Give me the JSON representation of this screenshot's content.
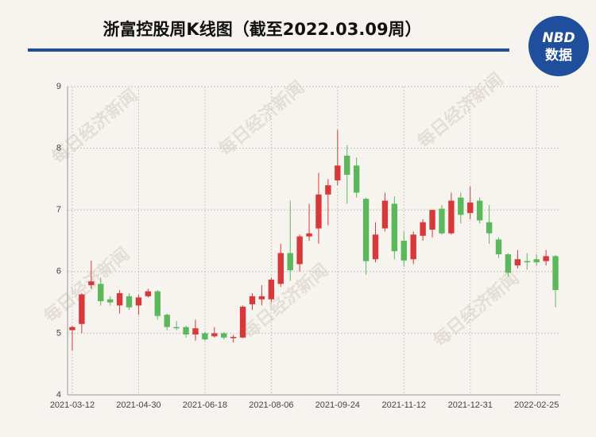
{
  "chart_data": {
    "type": "candlestick",
    "title": "浙富控股周K线图（截至2022.03.09周）",
    "logo_text": "NBD",
    "logo_subtext": "数据",
    "watermark": "每日经济新闻",
    "categories": [
      "2021-03-12",
      null,
      null,
      null,
      null,
      null,
      null,
      "2021-04-30",
      null,
      null,
      null,
      null,
      null,
      null,
      "2021-06-18",
      null,
      null,
      null,
      null,
      null,
      null,
      "2021-08-06",
      null,
      null,
      null,
      null,
      null,
      null,
      "2021-09-24",
      null,
      null,
      null,
      null,
      null,
      null,
      "2021-11-12",
      null,
      null,
      null,
      null,
      null,
      null,
      "2021-12-31",
      null,
      null,
      null,
      null,
      null,
      null,
      "2022-02-25",
      null,
      null
    ],
    "open": [
      5.05,
      5.15,
      5.78,
      5.8,
      5.55,
      5.45,
      5.6,
      5.45,
      5.6,
      5.68,
      5.3,
      5.1,
      5.1,
      4.98,
      5.0,
      4.95,
      5.0,
      4.92,
      4.93,
      5.47,
      5.55,
      5.55,
      5.8,
      6.3,
      6.12,
      6.57,
      6.7,
      7.25,
      7.48,
      7.88,
      7.72,
      7.18,
      6.2,
      6.7,
      7.1,
      6.5,
      6.2,
      6.58,
      6.68,
      7.02,
      6.62,
      7.2,
      6.95,
      7.15,
      6.8,
      6.52,
      6.28,
      6.1,
      6.17,
      6.2,
      6.17,
      6.25
    ],
    "high": [
      5.12,
      5.65,
      6.18,
      5.9,
      5.6,
      5.7,
      5.65,
      5.62,
      5.72,
      5.7,
      5.32,
      5.2,
      5.12,
      5.22,
      5.02,
      5.1,
      5.02,
      4.97,
      5.45,
      5.65,
      5.78,
      5.9,
      6.45,
      7.15,
      6.6,
      7.1,
      7.6,
      7.5,
      8.3,
      8.05,
      7.85,
      7.2,
      6.8,
      7.28,
      7.22,
      6.65,
      6.65,
      6.85,
      7.0,
      7.08,
      7.28,
      7.28,
      7.38,
      7.2,
      7.08,
      6.55,
      6.3,
      6.35,
      6.3,
      6.28,
      6.35,
      6.27
    ],
    "low": [
      4.72,
      5.0,
      5.72,
      5.45,
      5.45,
      5.32,
      5.38,
      5.3,
      5.58,
      5.22,
      5.05,
      5.05,
      4.93,
      4.88,
      4.88,
      4.93,
      4.9,
      4.85,
      4.92,
      5.38,
      5.45,
      5.5,
      5.75,
      5.85,
      6.0,
      6.5,
      6.45,
      6.75,
      7.4,
      7.1,
      7.2,
      5.95,
      6.15,
      6.65,
      6.2,
      6.08,
      6.12,
      6.5,
      6.55,
      6.6,
      6.6,
      6.78,
      6.85,
      6.78,
      6.45,
      6.22,
      5.92,
      6.05,
      6.03,
      6.1,
      6.1,
      5.42
    ],
    "close": [
      5.1,
      5.63,
      5.84,
      5.52,
      5.5,
      5.65,
      5.42,
      5.58,
      5.68,
      5.28,
      5.1,
      5.08,
      4.98,
      5.08,
      4.9,
      5.0,
      4.93,
      4.94,
      5.43,
      5.6,
      5.6,
      5.87,
      6.3,
      6.02,
      6.57,
      6.62,
      7.25,
      7.4,
      7.72,
      7.57,
      7.28,
      6.17,
      6.6,
      7.15,
      6.33,
      6.18,
      6.6,
      6.8,
      7.0,
      6.62,
      7.15,
      6.92,
      7.12,
      6.83,
      6.62,
      6.28,
      5.98,
      6.2,
      6.15,
      6.15,
      6.25,
      5.7
    ],
    "up_color": "#d9383a",
    "down_color": "#5cb85c",
    "ylim": [
      4,
      9
    ],
    "yticks": [
      4,
      5,
      6,
      7,
      8,
      9
    ],
    "grid": true
  }
}
